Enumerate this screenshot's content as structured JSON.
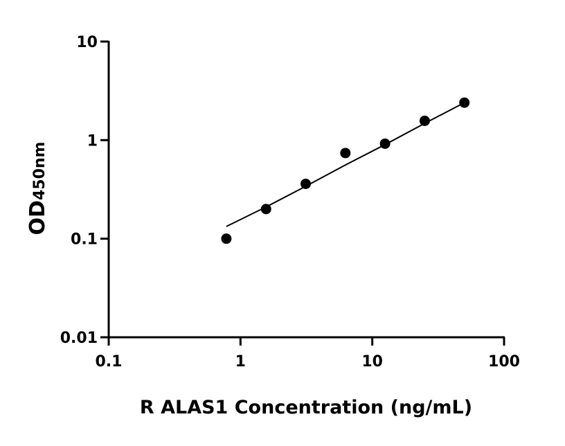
{
  "chart_data": {
    "type": "scatter",
    "title": "",
    "xlabel": "R ALAS1 Concentration (ng/mL)",
    "ylabel_main": "OD",
    "ylabel_sub": "450nm",
    "x_scale": "log",
    "y_scale": "log",
    "xlim": [
      0.1,
      100
    ],
    "ylim": [
      0.01,
      10
    ],
    "x_ticks": [
      0.1,
      1,
      10,
      100
    ],
    "x_tick_labels": [
      "0.1",
      "1",
      "10",
      "100"
    ],
    "y_ticks": [
      0.01,
      0.1,
      1,
      10
    ],
    "y_tick_labels": [
      "0.01",
      "0.1",
      "1",
      "10"
    ],
    "grid": false,
    "points": {
      "x": [
        0.781,
        1.563,
        3.125,
        6.25,
        12.5,
        25,
        50
      ],
      "y": [
        0.1,
        0.2,
        0.36,
        0.74,
        0.92,
        1.57,
        2.4
      ]
    },
    "fit_curve": {
      "x": [
        0.781,
        1.563,
        3.125,
        6.25,
        12.5,
        25,
        50
      ],
      "y": [
        0.133,
        0.21,
        0.34,
        0.56,
        0.9,
        1.48,
        2.4
      ]
    },
    "colors": {
      "points": "#000000",
      "line": "#000000"
    }
  }
}
